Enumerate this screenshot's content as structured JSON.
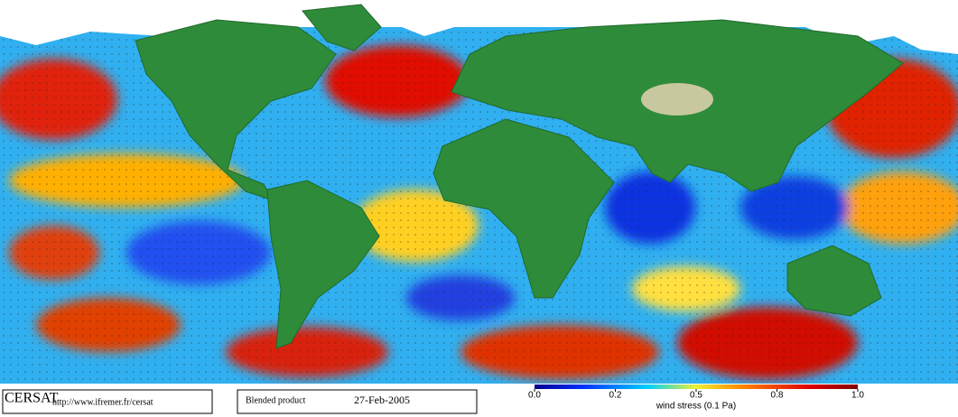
{
  "footer": {
    "logo": "CERSAT",
    "url": "http://www.ifremer.fr/cersat",
    "product": "Blended product",
    "date": "27-Feb-2005"
  },
  "colorbar": {
    "label": "wind stress (0.1 Pa)",
    "lim": [
      0,
      1
    ],
    "ticks": [
      {
        "value": 0,
        "label": "0.0"
      },
      0.2,
      0.5,
      0.8,
      {
        "value": 1,
        "label": "1.0"
      }
    ]
  }
}
